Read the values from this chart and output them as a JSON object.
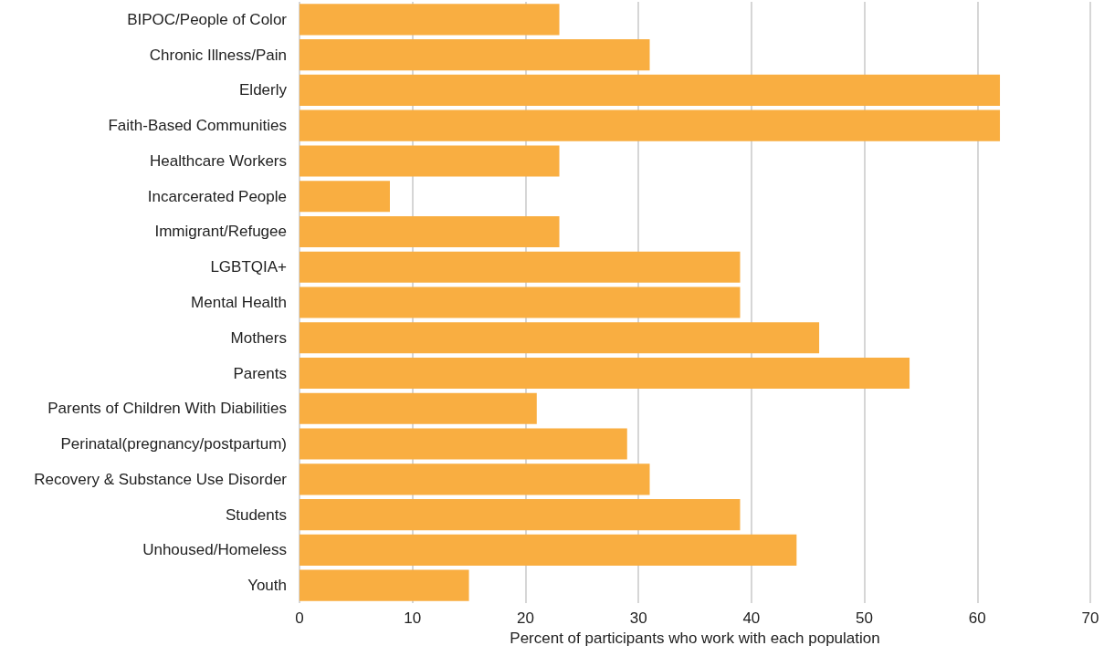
{
  "chart_data": {
    "type": "bar",
    "orientation": "horizontal",
    "xlabel": "Percent of participants who work with each population",
    "categories": [
      "BIPOC/People of Color",
      "Chronic Illness/Pain",
      "Elderly",
      "Faith-Based Communities",
      "Healthcare Workers",
      "Incarcerated People",
      "Immigrant/Refugee",
      "LGBTQIA+",
      "Mental Health",
      "Mothers",
      "Parents",
      "Parents of Children With Diabilities",
      "Perinatal(pregnancy/postpartum)",
      "Recovery & Substance Use Disorder",
      "Students",
      "Unhoused/Homeless",
      "Youth"
    ],
    "values": [
      23,
      31,
      62,
      62,
      23,
      8,
      23,
      39,
      39,
      46,
      54,
      21,
      29,
      31,
      39,
      44,
      15
    ],
    "color": "#f9ae41",
    "xlim": [
      0,
      70
    ],
    "xticks": [
      0,
      10,
      20,
      30,
      40,
      50,
      60,
      70
    ],
    "grid": "x"
  }
}
